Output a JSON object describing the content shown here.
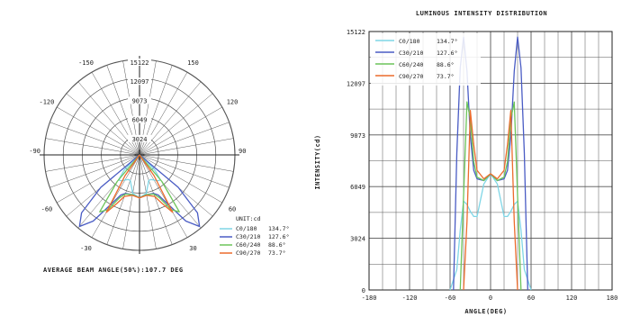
{
  "colors": {
    "C0/180": "#7fd6e6",
    "C30/210": "#4a5cc4",
    "C60/240": "#6cc45a",
    "C90/270": "#ec6b2c",
    "grid": "#555555",
    "axis": "#222222"
  },
  "chart_data": [
    {
      "type": "polar",
      "rings": [
        "15122",
        "12097",
        "9073",
        "6049",
        "3024"
      ],
      "angle_labels": [
        "-150",
        "150",
        "-120",
        "120",
        "-90",
        "90",
        "-60",
        "60",
        "-30",
        "30"
      ],
      "legend_title": "UNIT:cd",
      "series": [
        {
          "name": "C0/180",
          "beam": "134.7°",
          "angles": [
            -60,
            -50,
            -45,
            -40,
            -35,
            -30,
            -25,
            -20,
            -10,
            0,
            10,
            20,
            25,
            30,
            35,
            40,
            45,
            50,
            60
          ],
          "values": [
            0,
            1200,
            3500,
            5200,
            5000,
            4600,
            4300,
            4300,
            6200,
            6800,
            6200,
            4300,
            4300,
            4600,
            5000,
            5200,
            3500,
            1200,
            0
          ]
        },
        {
          "name": "C30/210",
          "beam": "127.6°",
          "angles": [
            -55,
            -50,
            -45,
            -40,
            -35,
            -30,
            -25,
            -20,
            -10,
            0,
            10,
            20,
            25,
            30,
            35,
            40,
            45,
            50,
            55
          ],
          "values": [
            0,
            8000,
            13000,
            14800,
            12800,
            9000,
            7000,
            6500,
            6400,
            6800,
            6400,
            6500,
            7000,
            9000,
            12800,
            14800,
            13000,
            8000,
            0
          ]
        },
        {
          "name": "C60/240",
          "beam": "88.6°",
          "angles": [
            -45,
            -40,
            -35,
            -30,
            -25,
            -20,
            -10,
            0,
            10,
            20,
            25,
            30,
            35,
            40,
            45
          ],
          "values": [
            0,
            5500,
            11000,
            10000,
            7500,
            6600,
            6400,
            6800,
            6400,
            6600,
            7500,
            10000,
            11000,
            5500,
            0
          ]
        },
        {
          "name": "C90/270",
          "beam": "73.7°",
          "angles": [
            -40,
            -35,
            -30,
            -25,
            -20,
            -10,
            0,
            10,
            20,
            25,
            30,
            35,
            40
          ],
          "values": [
            0,
            4000,
            10500,
            8500,
            7000,
            6500,
            6800,
            6500,
            7000,
            8500,
            10500,
            4000,
            0
          ]
        }
      ],
      "caption": "AVERAGE BEAM ANGLE(50%):107.7 DEG"
    },
    {
      "type": "line",
      "title": "LUMINOUS INTENSITY DISTRIBUTION",
      "xlabel": "ANGLE(DEG)",
      "ylabel": "INTENSITY(cd)",
      "xlim": [
        -180,
        180
      ],
      "ylim": [
        0,
        15122
      ],
      "x_ticks": [
        "-180",
        "-120",
        "-60",
        "0",
        "60",
        "120",
        "180"
      ],
      "y_ticks": [
        "0",
        "3024",
        "6049",
        "9073",
        "12097",
        "15122"
      ],
      "legend": [
        {
          "name": "C0/180",
          "beam": "134.7°"
        },
        {
          "name": "C30/210",
          "beam": "127.6°"
        },
        {
          "name": "C60/240",
          "beam": "88.6°"
        },
        {
          "name": "C90/270",
          "beam": "73.7°"
        }
      ],
      "grid": true,
      "legend_placement": "top-left"
    }
  ]
}
